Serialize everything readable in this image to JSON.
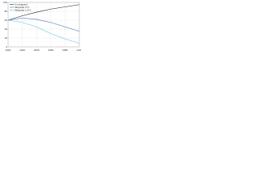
{
  "chart_data": {
    "type": "line",
    "x": [
      2000,
      2020,
      2040,
      2060,
      2080,
      2100
    ],
    "series": [
      {
        "name": "Unmitigated",
        "color": "#222222",
        "values": [
          60,
          70,
          78,
          85,
          90,
          95
        ]
      },
      {
        "name": "Mitigated 2°C",
        "color": "#3a6fc4",
        "values": [
          60,
          65,
          62,
          55,
          45,
          35
        ]
      },
      {
        "name": "Mitigated 1.5°C",
        "color": "#5ec4d8",
        "values": [
          60,
          55,
          45,
          30,
          18,
          8
        ]
      }
    ],
    "xlim": [
      2000,
      2100
    ],
    "xticks": [
      2000,
      2020,
      2040,
      2060,
      2080,
      2100
    ],
    "ylim": [
      0,
      100
    ],
    "yticks": [
      0,
      20,
      40,
      60,
      80,
      100
    ],
    "grid": true,
    "legend": "top-left"
  }
}
